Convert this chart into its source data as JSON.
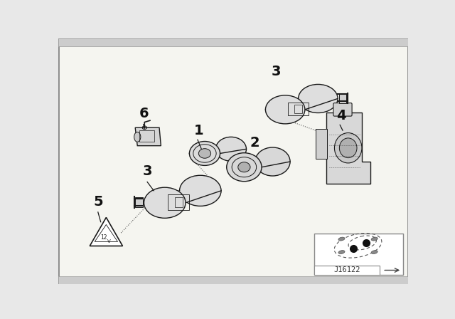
{
  "bg_color": "#e8e8e8",
  "inner_bg": "#f5f5f0",
  "lc": "#1a1a1a",
  "lc_light": "#666666",
  "diagram_code": "J16122",
  "figsize": [
    6.4,
    4.48
  ],
  "dpi": 100,
  "border_thickness": 3
}
